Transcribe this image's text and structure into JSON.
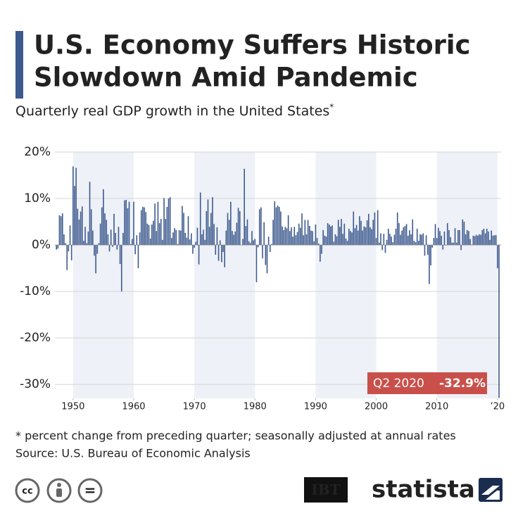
{
  "chart_data": {
    "type": "bar",
    "title": [
      "U.S. Economy Suffers Historic",
      "Slowdown Amid Pandemic"
    ],
    "subtitle": "Quarterly real GDP growth in the United States",
    "subtitle_mark": "*",
    "color": "#3d5a8e",
    "x": [
      1947.25,
      1947.5,
      1947.75,
      1948,
      1948.25,
      1948.5,
      1948.75,
      1949,
      1949.25,
      1949.5,
      1949.75,
      1950,
      1950.25,
      1950.5,
      1950.75,
      1951,
      1951.25,
      1951.5,
      1951.75,
      1952,
      1952.25,
      1952.5,
      1952.75,
      1953,
      1953.25,
      1953.5,
      1953.75,
      1954,
      1954.25,
      1954.5,
      1954.75,
      1955,
      1955.25,
      1955.5,
      1955.75,
      1956,
      1956.25,
      1956.5,
      1956.75,
      1957,
      1957.25,
      1957.5,
      1957.75,
      1958,
      1958.25,
      1958.5,
      1958.75,
      1959,
      1959.25,
      1959.5,
      1959.75,
      1960,
      1960.25,
      1960.5,
      1960.75,
      1961,
      1961.25,
      1961.5,
      1961.75,
      1962,
      1962.25,
      1962.5,
      1962.75,
      1963,
      1963.25,
      1963.5,
      1963.75,
      1964,
      1964.25,
      1964.5,
      1964.75,
      1965,
      1965.25,
      1965.5,
      1965.75,
      1966,
      1966.25,
      1966.5,
      1966.75,
      1967,
      1967.25,
      1967.5,
      1967.75,
      1968,
      1968.25,
      1968.5,
      1968.75,
      1969,
      1969.25,
      1969.5,
      1969.75,
      1970,
      1970.25,
      1970.5,
      1970.75,
      1971,
      1971.25,
      1971.5,
      1971.75,
      1972,
      1972.25,
      1972.5,
      1972.75,
      1973,
      1973.25,
      1973.5,
      1973.75,
      1974,
      1974.25,
      1974.5,
      1974.75,
      1975,
      1975.25,
      1975.5,
      1975.75,
      1976,
      1976.25,
      1976.5,
      1976.75,
      1977,
      1977.25,
      1977.5,
      1977.75,
      1978,
      1978.25,
      1978.5,
      1978.75,
      1979,
      1979.25,
      1979.5,
      1979.75,
      1980,
      1980.25,
      1980.5,
      1980.75,
      1981,
      1981.25,
      1981.5,
      1981.75,
      1982,
      1982.25,
      1982.5,
      1982.75,
      1983,
      1983.25,
      1983.5,
      1983.75,
      1984,
      1984.25,
      1984.5,
      1984.75,
      1985,
      1985.25,
      1985.5,
      1985.75,
      1986,
      1986.25,
      1986.5,
      1986.75,
      1987,
      1987.25,
      1987.5,
      1987.75,
      1988,
      1988.25,
      1988.5,
      1988.75,
      1989,
      1989.25,
      1989.5,
      1989.75,
      1990,
      1990.25,
      1990.5,
      1990.75,
      1991,
      1991.25,
      1991.5,
      1991.75,
      1992,
      1992.25,
      1992.5,
      1992.75,
      1993,
      1993.25,
      1993.5,
      1993.75,
      1994,
      1994.25,
      1994.5,
      1994.75,
      1995,
      1995.25,
      1995.5,
      1995.75,
      1996,
      1996.25,
      1996.5,
      1996.75,
      1997,
      1997.25,
      1997.5,
      1997.75,
      1998,
      1998.25,
      1998.5,
      1998.75,
      1999,
      1999.25,
      1999.5,
      1999.75,
      2000,
      2000.25,
      2000.5,
      2000.75,
      2001,
      2001.25,
      2001.5,
      2001.75,
      2002,
      2002.25,
      2002.5,
      2002.75,
      2003,
      2003.25,
      2003.5,
      2003.75,
      2004,
      2004.25,
      2004.5,
      2004.75,
      2005,
      2005.25,
      2005.5,
      2005.75,
      2006,
      2006.25,
      2006.5,
      2006.75,
      2007,
      2007.25,
      2007.5,
      2007.75,
      2008,
      2008.25,
      2008.5,
      2008.75,
      2009,
      2009.25,
      2009.5,
      2009.75,
      2010,
      2010.25,
      2010.5,
      2010.75,
      2011,
      2011.25,
      2011.5,
      2011.75,
      2012,
      2012.25,
      2012.5,
      2012.75,
      2013,
      2013.25,
      2013.5,
      2013.75,
      2014,
      2014.25,
      2014.5,
      2014.75,
      2015,
      2015.25,
      2015.5,
      2015.75,
      2016,
      2016.25,
      2016.5,
      2016.75,
      2017,
      2017.25,
      2017.5,
      2017.75,
      2018,
      2018.25,
      2018.5,
      2018.75,
      2019,
      2019.25,
      2019.5,
      2019.75,
      2020,
      2020.25
    ],
    "values": [
      -1.0,
      -0.8,
      6.4,
      6.2,
      6.8,
      2.3,
      0.4,
      -5.4,
      -1.4,
      4.2,
      -3.3,
      16.9,
      12.7,
      16.6,
      7.8,
      5.5,
      7.2,
      8.3,
      0.9,
      3.9,
      0.4,
      2.9,
      13.6,
      7.7,
      3.1,
      -2.3,
      -6.1,
      -1.9,
      0.4,
      4.6,
      8.1,
      12.0,
      6.8,
      5.4,
      2.3,
      -1.4,
      3.3,
      -0.4,
      6.7,
      2.6,
      -1.0,
      3.9,
      -4.1,
      -10.0,
      2.6,
      9.6,
      9.7,
      7.9,
      9.3,
      0.2,
      1.3,
      9.3,
      -2.0,
      2.1,
      -5.0,
      2.7,
      7.5,
      8.2,
      8.1,
      7.1,
      4.6,
      4.3,
      1.4,
      4.4,
      5.2,
      8.9,
      3.0,
      9.3,
      4.7,
      5.6,
      1.1,
      10.1,
      5.6,
      8.2,
      10.0,
      10.3,
      1.5,
      2.7,
      3.6,
      3.2,
      0.2,
      3.2,
      3.1,
      8.4,
      6.9,
      2.6,
      1.6,
      6.2,
      1.2,
      2.5,
      -1.9,
      -0.6,
      0.7,
      3.7,
      -4.2,
      11.3,
      2.3,
      3.3,
      1.1,
      7.3,
      9.8,
      3.9,
      6.9,
      10.3,
      4.5,
      -2.1,
      3.8,
      -3.4,
      1.0,
      -3.7,
      -1.5,
      -4.8,
      3.1,
      6.9,
      5.4,
      9.3,
      3.0,
      2.2,
      2.9,
      4.8,
      8.0,
      7.3,
      0.0,
      1.3,
      16.4,
      4.1,
      5.5,
      0.8,
      0.4,
      3.0,
      1.0,
      1.3,
      -8.0,
      -0.5,
      7.7,
      8.1,
      -2.9,
      4.9,
      -4.3,
      -6.1,
      1.8,
      -1.5,
      0.2,
      5.4,
      9.4,
      8.1,
      8.5,
      8.2,
      7.2,
      4.0,
      3.2,
      3.9,
      3.6,
      6.4,
      3.0,
      3.8,
      1.8,
      3.9,
      2.1,
      2.8,
      4.6,
      3.7,
      6.8,
      2.1,
      5.4,
      2.3,
      5.4,
      4.1,
      3.1,
      3.0,
      0.8,
      4.4,
      1.5,
      0.3,
      -3.6,
      -1.9,
      3.2,
      2.0,
      1.8,
      4.7,
      4.4,
      4.0,
      4.2,
      0.7,
      2.3,
      1.9,
      5.4,
      3.9,
      5.6,
      2.4,
      4.6,
      1.4,
      0.9,
      3.5,
      3.0,
      2.7,
      7.2,
      3.6,
      4.3,
      3.1,
      6.2,
      5.2,
      3.1,
      4.0,
      3.8,
      5.3,
      6.7,
      3.8,
      3.4,
      5.4,
      7.0,
      1.5,
      7.5,
      0.5,
      2.5,
      -1.1,
      2.4,
      -1.7,
      1.1,
      3.5,
      2.4,
      1.8,
      0.6,
      2.2,
      3.5,
      7.0,
      4.7,
      2.2,
      3.1,
      3.8,
      4.1,
      4.5,
      2.0,
      3.2,
      2.3,
      5.5,
      0.9,
      0.6,
      3.5,
      0.9,
      2.3,
      2.2,
      2.5,
      -2.3,
      2.1,
      -2.1,
      -8.4,
      -4.4,
      -0.6,
      1.5,
      4.5,
      1.5,
      3.7,
      3.0,
      2.0,
      -1.0,
      2.9,
      -0.1,
      4.7,
      3.2,
      1.7,
      0.5,
      0.5,
      3.6,
      0.5,
      3.2,
      3.2,
      -1.1,
      5.5,
      5.0,
      2.3,
      3.2,
      3.0,
      1.3,
      0.1,
      2.0,
      1.9,
      2.2,
      2.0,
      2.3,
      2.2,
      3.2,
      3.5,
      2.5,
      3.5,
      2.9,
      1.1,
      3.1,
      2.0,
      2.1,
      2.1,
      -5.0,
      -32.9
    ],
    "xlim": [
      1947,
      2020.6
    ],
    "xticks": [
      1950,
      1960,
      1970,
      1980,
      1990,
      2000,
      2010,
      {
        "value": 2020,
        "label": "’20"
      }
    ],
    "ylim": [
      -33,
      20
    ],
    "yticks": [
      {
        "value": 20,
        "label": "20%"
      },
      {
        "value": 10,
        "label": "10%"
      },
      {
        "value": 0,
        "label": "0%"
      },
      {
        "value": -10,
        "label": "-10%"
      },
      {
        "value": -20,
        "label": "-20%"
      },
      {
        "value": -30,
        "label": "-30%"
      }
    ],
    "grid": true,
    "annotation": {
      "label": "Q2 2020",
      "value_label": "-32.9%"
    },
    "notes": [
      "* percent change from preceding quarter; seasonally adjusted at annual rates",
      "Source: U.S. Bureau of Economic Analysis"
    ],
    "footer": {
      "cc": "cc",
      "nd": "=",
      "partner": "IBT",
      "brand": "statista"
    }
  }
}
